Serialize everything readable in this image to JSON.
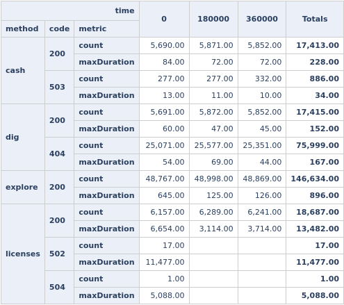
{
  "header": {
    "time_label": "time",
    "method_label": "method",
    "code_label": "code",
    "metric_label": "metric",
    "columns": [
      "0",
      "180000",
      "360000"
    ],
    "totals_label": "Totals"
  },
  "groups": [
    {
      "method": "cash",
      "codes": [
        {
          "code": "200",
          "rows": [
            {
              "metric": "count",
              "values": [
                "5,690.00",
                "5,871.00",
                "5,852.00"
              ],
              "total": "17,413.00"
            },
            {
              "metric": "maxDuration",
              "values": [
                "84.00",
                "72.00",
                "72.00"
              ],
              "total": "228.00"
            }
          ]
        },
        {
          "code": "503",
          "rows": [
            {
              "metric": "count",
              "values": [
                "277.00",
                "277.00",
                "332.00"
              ],
              "total": "886.00"
            },
            {
              "metric": "maxDuration",
              "values": [
                "13.00",
                "11.00",
                "10.00"
              ],
              "total": "34.00"
            }
          ]
        }
      ]
    },
    {
      "method": "dig",
      "codes": [
        {
          "code": "200",
          "rows": [
            {
              "metric": "count",
              "values": [
                "5,691.00",
                "5,872.00",
                "5,852.00"
              ],
              "total": "17,415.00"
            },
            {
              "metric": "maxDuration",
              "values": [
                "60.00",
                "47.00",
                "45.00"
              ],
              "total": "152.00"
            }
          ]
        },
        {
          "code": "404",
          "rows": [
            {
              "metric": "count",
              "values": [
                "25,071.00",
                "25,577.00",
                "25,351.00"
              ],
              "total": "75,999.00"
            },
            {
              "metric": "maxDuration",
              "values": [
                "54.00",
                "69.00",
                "44.00"
              ],
              "total": "167.00"
            }
          ]
        }
      ]
    },
    {
      "method": "explore",
      "codes": [
        {
          "code": "200",
          "rows": [
            {
              "metric": "count",
              "values": [
                "48,767.00",
                "48,998.00",
                "48,869.00"
              ],
              "total": "146,634.00"
            },
            {
              "metric": "maxDuration",
              "values": [
                "645.00",
                "125.00",
                "126.00"
              ],
              "total": "896.00"
            }
          ]
        }
      ]
    },
    {
      "method": "licenses",
      "codes": [
        {
          "code": "200",
          "rows": [
            {
              "metric": "count",
              "values": [
                "6,157.00",
                "6,289.00",
                "6,241.00"
              ],
              "total": "18,687.00"
            },
            {
              "metric": "maxDuration",
              "values": [
                "6,654.00",
                "3,114.00",
                "3,714.00"
              ],
              "total": "13,482.00"
            }
          ]
        },
        {
          "code": "502",
          "rows": [
            {
              "metric": "count",
              "values": [
                "17.00",
                "",
                ""
              ],
              "total": "17.00"
            },
            {
              "metric": "maxDuration",
              "values": [
                "11,477.00",
                "",
                ""
              ],
              "total": "11,477.00"
            }
          ]
        },
        {
          "code": "504",
          "rows": [
            {
              "metric": "count",
              "values": [
                "1.00",
                "",
                ""
              ],
              "total": "1.00"
            },
            {
              "metric": "maxDuration",
              "values": [
                "5,088.00",
                "",
                ""
              ],
              "total": "5,088.00"
            }
          ]
        }
      ]
    }
  ]
}
